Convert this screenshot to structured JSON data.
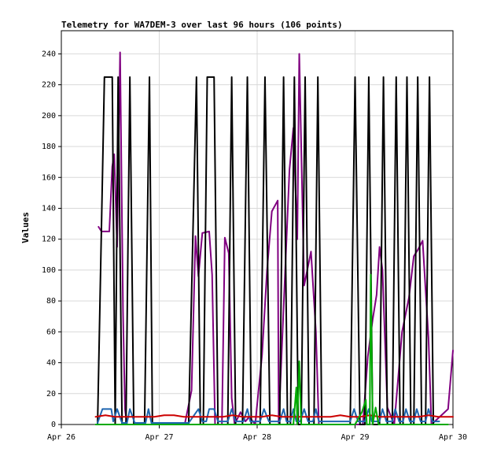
{
  "chart_data": {
    "type": "line",
    "title": "Telemetry for WA7DEM-3 over last 96 hours (106 points)",
    "xlabel": "",
    "ylabel": "Values",
    "grid": true,
    "legend": "none",
    "x_axis": {
      "type": "date",
      "min": "Apr 26",
      "max": "Apr 30",
      "ticks": [
        {
          "label": "Apr 26",
          "value": 0
        },
        {
          "label": "Apr 27",
          "value": 1
        },
        {
          "label": "Apr 28",
          "value": 2
        },
        {
          "label": "Apr 29",
          "value": 3
        },
        {
          "label": "Apr 30",
          "value": 4
        }
      ]
    },
    "y_axis": {
      "min": 0,
      "max": 255,
      "ticks": [
        0,
        20,
        40,
        60,
        80,
        100,
        120,
        140,
        160,
        180,
        200,
        220,
        240
      ]
    },
    "series": [
      {
        "color": "#800080",
        "points": [
          [
            0.38,
            128
          ],
          [
            0.41,
            125
          ],
          [
            0.49,
            125
          ],
          [
            0.52,
            167
          ],
          [
            0.54,
            175
          ],
          [
            0.57,
            115
          ],
          [
            0.6,
            241
          ],
          [
            0.63,
            73
          ],
          [
            0.65,
            10
          ],
          [
            0.67,
            0
          ],
          [
            1.26,
            0
          ],
          [
            1.33,
            22
          ],
          [
            1.37,
            122
          ],
          [
            1.4,
            96
          ],
          [
            1.44,
            124
          ],
          [
            1.51,
            125
          ],
          [
            1.54,
            97
          ],
          [
            1.57,
            0
          ],
          [
            1.64,
            0
          ],
          [
            1.67,
            121
          ],
          [
            1.71,
            111
          ],
          [
            1.74,
            17
          ],
          [
            1.77,
            0
          ],
          [
            1.83,
            8
          ],
          [
            1.88,
            2
          ],
          [
            1.92,
            5
          ],
          [
            1.98,
            0
          ],
          [
            2.05,
            45
          ],
          [
            2.1,
            99
          ],
          [
            2.15,
            138
          ],
          [
            2.21,
            145
          ],
          [
            2.22,
            1
          ],
          [
            2.33,
            165
          ],
          [
            2.37,
            192
          ],
          [
            2.41,
            120
          ],
          [
            2.43,
            240
          ],
          [
            2.48,
            90
          ],
          [
            2.55,
            112
          ],
          [
            2.6,
            60
          ],
          [
            2.63,
            0
          ],
          [
            3.08,
            0
          ],
          [
            3.13,
            44
          ],
          [
            3.18,
            68
          ],
          [
            3.22,
            84
          ],
          [
            3.25,
            115
          ],
          [
            3.28,
            100
          ],
          [
            3.33,
            11
          ],
          [
            3.4,
            0
          ],
          [
            3.48,
            60
          ],
          [
            3.55,
            82
          ],
          [
            3.6,
            109
          ],
          [
            3.64,
            113
          ],
          [
            3.69,
            119
          ],
          [
            3.75,
            56
          ],
          [
            3.78,
            0
          ],
          [
            3.95,
            10
          ],
          [
            4.0,
            48
          ]
        ]
      },
      {
        "color": "#000000",
        "points": [
          [
            0.37,
            0
          ],
          [
            0.44,
            225
          ],
          [
            0.52,
            225
          ],
          [
            0.55,
            0
          ],
          [
            0.58,
            225
          ],
          [
            0.62,
            0
          ],
          [
            0.66,
            0
          ],
          [
            0.7,
            225
          ],
          [
            0.74,
            0
          ],
          [
            0.85,
            0
          ],
          [
            0.9,
            225
          ],
          [
            0.93,
            0
          ],
          [
            1.3,
            0
          ],
          [
            1.38,
            225
          ],
          [
            1.42,
            0
          ],
          [
            1.45,
            0
          ],
          [
            1.49,
            225
          ],
          [
            1.56,
            225
          ],
          [
            1.6,
            0
          ],
          [
            1.7,
            0
          ],
          [
            1.74,
            225
          ],
          [
            1.78,
            0
          ],
          [
            1.85,
            0
          ],
          [
            1.9,
            225
          ],
          [
            1.94,
            0
          ],
          [
            2.03,
            0
          ],
          [
            2.08,
            225
          ],
          [
            2.13,
            0
          ],
          [
            2.23,
            0
          ],
          [
            2.27,
            225
          ],
          [
            2.31,
            0
          ],
          [
            2.34,
            0
          ],
          [
            2.38,
            225
          ],
          [
            2.42,
            0
          ],
          [
            2.45,
            0
          ],
          [
            2.49,
            225
          ],
          [
            2.53,
            0
          ],
          [
            2.58,
            0
          ],
          [
            2.62,
            225
          ],
          [
            2.66,
            0
          ],
          [
            2.95,
            0
          ],
          [
            3.0,
            225
          ],
          [
            3.05,
            0
          ],
          [
            3.1,
            0
          ],
          [
            3.14,
            225
          ],
          [
            3.18,
            0
          ],
          [
            3.25,
            0
          ],
          [
            3.29,
            225
          ],
          [
            3.33,
            0
          ],
          [
            3.38,
            0
          ],
          [
            3.42,
            225
          ],
          [
            3.46,
            0
          ],
          [
            3.49,
            0
          ],
          [
            3.53,
            225
          ],
          [
            3.57,
            0
          ],
          [
            3.6,
            0
          ],
          [
            3.64,
            225
          ],
          [
            3.68,
            0
          ],
          [
            3.72,
            0
          ],
          [
            3.76,
            225
          ],
          [
            3.8,
            0
          ],
          [
            3.86,
            0
          ]
        ]
      },
      {
        "color": "#1f66b0",
        "points": [
          [
            0.37,
            1
          ],
          [
            0.42,
            10
          ],
          [
            0.51,
            10
          ],
          [
            0.53,
            2
          ],
          [
            0.57,
            10
          ],
          [
            0.62,
            1
          ],
          [
            0.67,
            1
          ],
          [
            0.7,
            10
          ],
          [
            0.75,
            1
          ],
          [
            0.86,
            1
          ],
          [
            0.89,
            10
          ],
          [
            0.92,
            1
          ],
          [
            1.3,
            1
          ],
          [
            1.4,
            10
          ],
          [
            1.44,
            2
          ],
          [
            1.48,
            2
          ],
          [
            1.51,
            10
          ],
          [
            1.56,
            10
          ],
          [
            1.6,
            2
          ],
          [
            1.7,
            2
          ],
          [
            1.74,
            10
          ],
          [
            1.78,
            2
          ],
          [
            1.86,
            2
          ],
          [
            1.9,
            10
          ],
          [
            1.93,
            2
          ],
          [
            2.03,
            2
          ],
          [
            2.07,
            10
          ],
          [
            2.12,
            2
          ],
          [
            2.23,
            2
          ],
          [
            2.27,
            10
          ],
          [
            2.3,
            2
          ],
          [
            2.34,
            2
          ],
          [
            2.37,
            10
          ],
          [
            2.4,
            2
          ],
          [
            2.44,
            2
          ],
          [
            2.48,
            10
          ],
          [
            2.52,
            2
          ],
          [
            2.57,
            2
          ],
          [
            2.6,
            10
          ],
          [
            2.63,
            2
          ],
          [
            2.95,
            2
          ],
          [
            2.99,
            10
          ],
          [
            3.03,
            2
          ],
          [
            3.1,
            2
          ],
          [
            3.14,
            10
          ],
          [
            3.17,
            2
          ],
          [
            3.25,
            2
          ],
          [
            3.28,
            10
          ],
          [
            3.32,
            2
          ],
          [
            3.38,
            2
          ],
          [
            3.41,
            10
          ],
          [
            3.45,
            2
          ],
          [
            3.49,
            2
          ],
          [
            3.52,
            10
          ],
          [
            3.56,
            2
          ],
          [
            3.6,
            2
          ],
          [
            3.63,
            10
          ],
          [
            3.67,
            2
          ],
          [
            3.72,
            2
          ],
          [
            3.75,
            10
          ],
          [
            3.79,
            2
          ],
          [
            3.86,
            2
          ]
        ]
      },
      {
        "color": "#cc0000",
        "points": [
          [
            0.35,
            5
          ],
          [
            0.45,
            6
          ],
          [
            0.55,
            5
          ],
          [
            0.65,
            5
          ],
          [
            0.75,
            5
          ],
          [
            0.85,
            5
          ],
          [
            0.95,
            5
          ],
          [
            1.05,
            6
          ],
          [
            1.15,
            6
          ],
          [
            1.25,
            5
          ],
          [
            1.35,
            5
          ],
          [
            1.45,
            5
          ],
          [
            1.55,
            5
          ],
          [
            1.65,
            5
          ],
          [
            1.75,
            6
          ],
          [
            1.85,
            5
          ],
          [
            1.95,
            5
          ],
          [
            2.05,
            5
          ],
          [
            2.15,
            6
          ],
          [
            2.25,
            5
          ],
          [
            2.35,
            5
          ],
          [
            2.45,
            5
          ],
          [
            2.55,
            5
          ],
          [
            2.65,
            5
          ],
          [
            2.75,
            5
          ],
          [
            2.85,
            6
          ],
          [
            2.95,
            5
          ],
          [
            3.05,
            5
          ],
          [
            3.15,
            6
          ],
          [
            3.25,
            5
          ],
          [
            3.35,
            5
          ],
          [
            3.45,
            5
          ],
          [
            3.55,
            5
          ],
          [
            3.65,
            5
          ],
          [
            3.75,
            6
          ],
          [
            3.85,
            5
          ],
          [
            4.0,
            5
          ]
        ]
      },
      {
        "color": "#00aa00",
        "points": [
          [
            0.35,
            0
          ],
          [
            1.3,
            0
          ],
          [
            2.37,
            0
          ],
          [
            2.4,
            24
          ],
          [
            2.41,
            0
          ],
          [
            2.43,
            41
          ],
          [
            2.45,
            0
          ],
          [
            3.0,
            0
          ],
          [
            3.07,
            8
          ],
          [
            3.11,
            16
          ],
          [
            3.12,
            0
          ],
          [
            3.15,
            0
          ],
          [
            3.16,
            97
          ],
          [
            3.18,
            0
          ],
          [
            3.21,
            11
          ],
          [
            3.24,
            0
          ],
          [
            3.52,
            0
          ],
          [
            3.65,
            0
          ],
          [
            3.95,
            0
          ]
        ]
      }
    ]
  }
}
